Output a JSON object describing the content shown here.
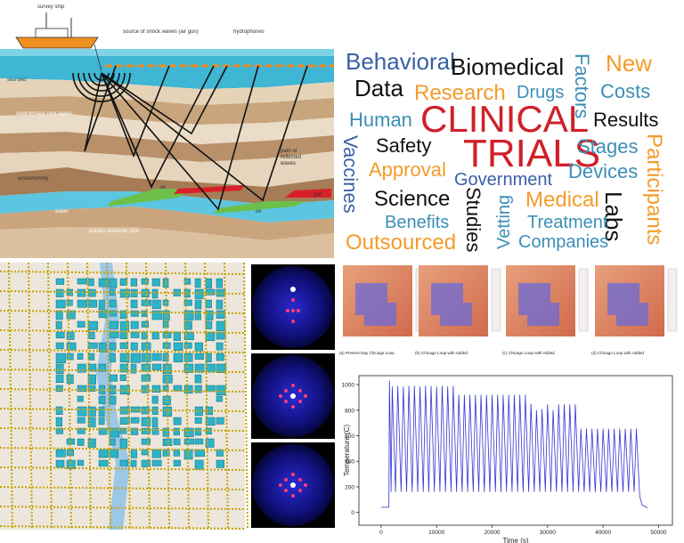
{
  "seismic_diagram": {
    "labels": [
      "survey ship",
      "source of shock waves (air gun)",
      "hydrophones",
      "sea bed",
      "sedimentary rock layers",
      "path of reflected waves",
      "unconformity",
      "oil",
      "oil",
      "gas",
      "water",
      "porous reservoir rock"
    ]
  },
  "word_cloud": {
    "words": [
      "Behavioral",
      "Biomedical",
      "Factors",
      "New",
      "Data",
      "Research",
      "Drugs",
      "Costs",
      "Human",
      "CLINICAL",
      "Results",
      "Vaccines",
      "Safety",
      "TRIALS",
      "Stages",
      "Participants",
      "Approval",
      "Devices",
      "Government",
      "Science",
      "Studies",
      "Vetting",
      "Medical",
      "Labs",
      "Benefits",
      "Treatment",
      "Outsourced",
      "Companies"
    ]
  },
  "heatmap_panels": {
    "captions": [
      "(a) Present Day Chicago Loop",
      "(b) Chicago Loop with Added",
      "(c) Chicago Loop with Added",
      "(d) Chicago Loop with Added"
    ]
  },
  "temperature_chart": {
    "type": "line",
    "x_label": "Time (s)",
    "y_label": "Temperature (C)",
    "xlim": [
      -4000,
      52500
    ],
    "ylim": [
      -100,
      1070
    ],
    "xticks": [
      0,
      10000,
      20000,
      30000,
      40000,
      50000
    ],
    "yticks": [
      0,
      200,
      400,
      600,
      800,
      1000
    ],
    "series": [
      {
        "color": "#3333d6",
        "x": [
          0,
          1400,
          1500,
          1800,
          2000,
          2600,
          3000,
          3600,
          4000,
          4600,
          5000,
          5600,
          6000,
          6600,
          7000,
          7600,
          8000,
          8600,
          9000,
          9600,
          10000,
          10600,
          11000,
          11600,
          12000,
          12600,
          13000,
          13600,
          14000,
          14600,
          15000,
          15600,
          16000,
          16600,
          17000,
          17600,
          18000,
          18600,
          19000,
          19600,
          20000,
          20600,
          21000,
          21600,
          22000,
          22600,
          23000,
          23600,
          24000,
          24600,
          25000,
          25600,
          26000,
          26600,
          27000,
          27600,
          28000,
          28600,
          29000,
          29600,
          30000,
          30600,
          31000,
          31600,
          32000,
          32600,
          33000,
          33600,
          34000,
          34600,
          35000,
          35600,
          36000,
          36600,
          37000,
          37600,
          38000,
          38600,
          39000,
          39600,
          40000,
          40600,
          41000,
          41600,
          42000,
          42600,
          43000,
          43600,
          44000,
          44600,
          45000,
          45600,
          46000,
          46600,
          47000,
          48000
        ],
        "values": [
          40,
          40,
          1030,
          160,
          985,
          160,
          990,
          160,
          985,
          160,
          990,
          160,
          990,
          160,
          985,
          160,
          990,
          160,
          990,
          160,
          985,
          160,
          990,
          160,
          985,
          160,
          990,
          160,
          920,
          160,
          920,
          160,
          920,
          160,
          920,
          160,
          920,
          160,
          920,
          160,
          920,
          160,
          920,
          160,
          920,
          160,
          920,
          160,
          920,
          160,
          920,
          160,
          920,
          160,
          850,
          160,
          800,
          160,
          810,
          160,
          845,
          160,
          800,
          160,
          845,
          160,
          845,
          160,
          845,
          160,
          845,
          160,
          655,
          160,
          655,
          160,
          655,
          160,
          655,
          160,
          655,
          160,
          655,
          160,
          655,
          160,
          655,
          160,
          655,
          160,
          655,
          160,
          655,
          130,
          60,
          35
        ]
      }
    ]
  }
}
